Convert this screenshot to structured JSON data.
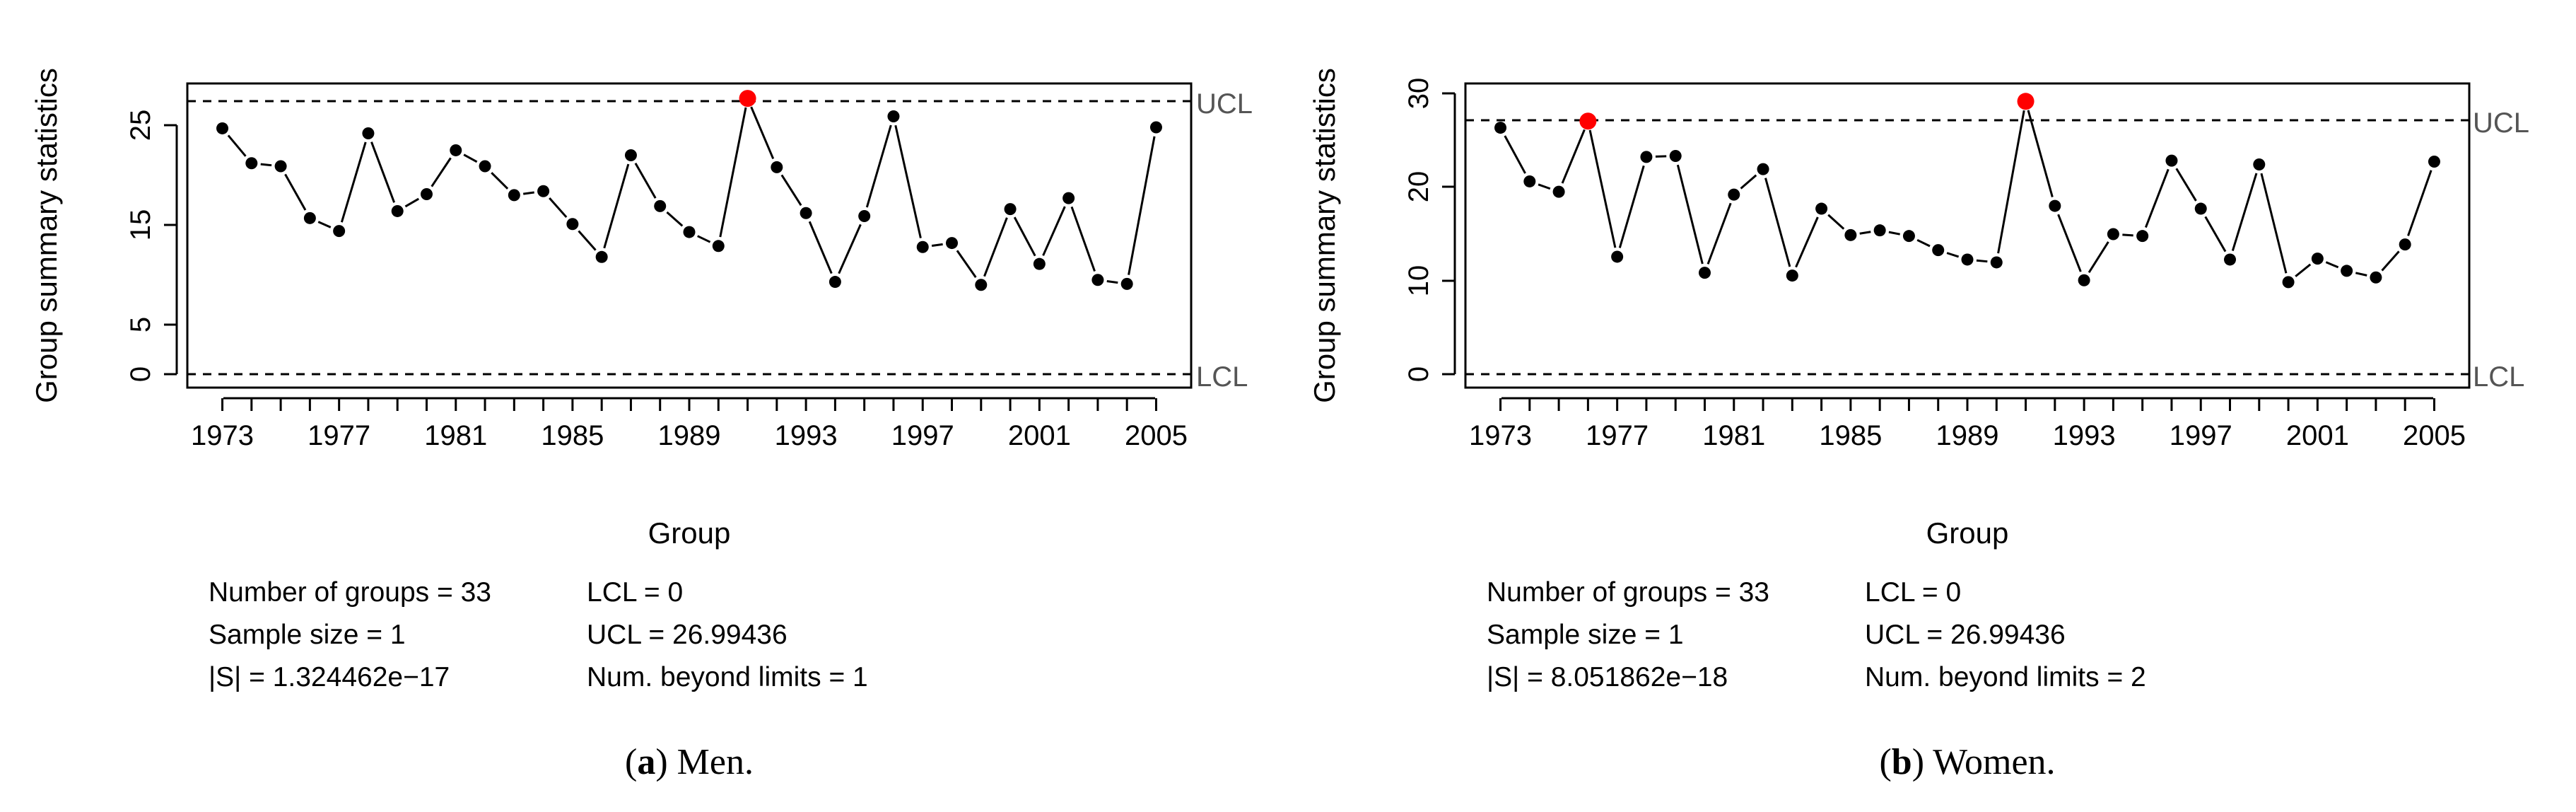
{
  "chart_data": [
    {
      "type": "line",
      "chart_kind": "control chart",
      "caption_letter": "a",
      "caption_text": "Men.",
      "xlabel": "Group",
      "ylabel": "Group summary statistics",
      "x": [
        1973,
        1974,
        1975,
        1976,
        1977,
        1978,
        1979,
        1980,
        1981,
        1982,
        1983,
        1984,
        1985,
        1986,
        1987,
        1988,
        1989,
        1990,
        1991,
        1992,
        1993,
        1994,
        1995,
        1996,
        1997,
        1998,
        1999,
        2000,
        2001,
        2002,
        2003,
        2004,
        2005
      ],
      "values": [
        25.0,
        21.5,
        21.2,
        16.0,
        14.7,
        24.5,
        16.7,
        18.4,
        22.8,
        21.2,
        18.3,
        18.7,
        15.4,
        12.1,
        22.3,
        17.2,
        14.6,
        13.2,
        28.0,
        21.1,
        16.5,
        9.6,
        16.2,
        26.2,
        13.1,
        13.5,
        9.3,
        16.9,
        11.4,
        18.0,
        9.8,
        9.4,
        25.1
      ],
      "beyond_limit_years": [
        1991
      ],
      "xticks": [
        1973,
        1977,
        1981,
        1985,
        1989,
        1993,
        1997,
        2001,
        2005
      ],
      "yticks": [
        0,
        5,
        15,
        25
      ],
      "ylim": [
        -1,
        29.5
      ],
      "xlim": [
        1971.8,
        2006.2
      ],
      "ucl_value": 26.99436,
      "lcl_value": 0,
      "ucl_label": "UCL",
      "lcl_label": "LCL",
      "point_color": "#000000",
      "beyond_color": "#ff0000",
      "stats": {
        "groups": "Number of groups = 33",
        "sample_size": "Sample size = 1",
        "det": "|S| = 1.324462e−17",
        "lcl": "LCL = 0",
        "ucl": "UCL = 26.99436",
        "beyond": "Num. beyond limits = 1"
      }
    },
    {
      "type": "line",
      "chart_kind": "control chart",
      "caption_letter": "b",
      "caption_text": "Women.",
      "xlabel": "Group",
      "ylabel": "Group summary statistics",
      "x": [
        1973,
        1974,
        1975,
        1976,
        1977,
        1978,
        1979,
        1980,
        1981,
        1982,
        1983,
        1984,
        1985,
        1986,
        1987,
        1988,
        1989,
        1990,
        1991,
        1992,
        1993,
        1994,
        1995,
        1996,
        1997,
        1998,
        1999,
        2000,
        2001,
        2002,
        2003,
        2004,
        2005
      ],
      "values": [
        26.8,
        21.1,
        20.0,
        27.5,
        13.1,
        23.7,
        23.8,
        11.4,
        19.7,
        22.4,
        11.1,
        18.2,
        15.4,
        15.9,
        15.3,
        13.8,
        12.8,
        12.5,
        29.6,
        18.5,
        10.6,
        15.5,
        15.3,
        23.3,
        18.2,
        12.8,
        22.9,
        10.4,
        12.9,
        11.6,
        10.9,
        14.4,
        23.2
      ],
      "beyond_limit_years": [
        1976,
        1991
      ],
      "xticks": [
        1973,
        1977,
        1981,
        1985,
        1989,
        1993,
        1997,
        2001,
        2005
      ],
      "yticks": [
        0,
        10,
        20,
        30
      ],
      "ylim": [
        -0.8,
        31.5
      ],
      "xlim": [
        1971.8,
        2006.2
      ],
      "ucl_value": 26.99436,
      "lcl_value": 0,
      "ucl_label": "UCL",
      "lcl_label": "LCL",
      "point_color": "#000000",
      "beyond_color": "#ff0000",
      "stats": {
        "groups": "Number of groups = 33",
        "sample_size": "Sample size = 1",
        "det": "|S| = 8.051862e−18",
        "lcl": "LCL = 0",
        "ucl": "UCL = 26.99436",
        "beyond": "Num. beyond limits = 2"
      }
    }
  ]
}
